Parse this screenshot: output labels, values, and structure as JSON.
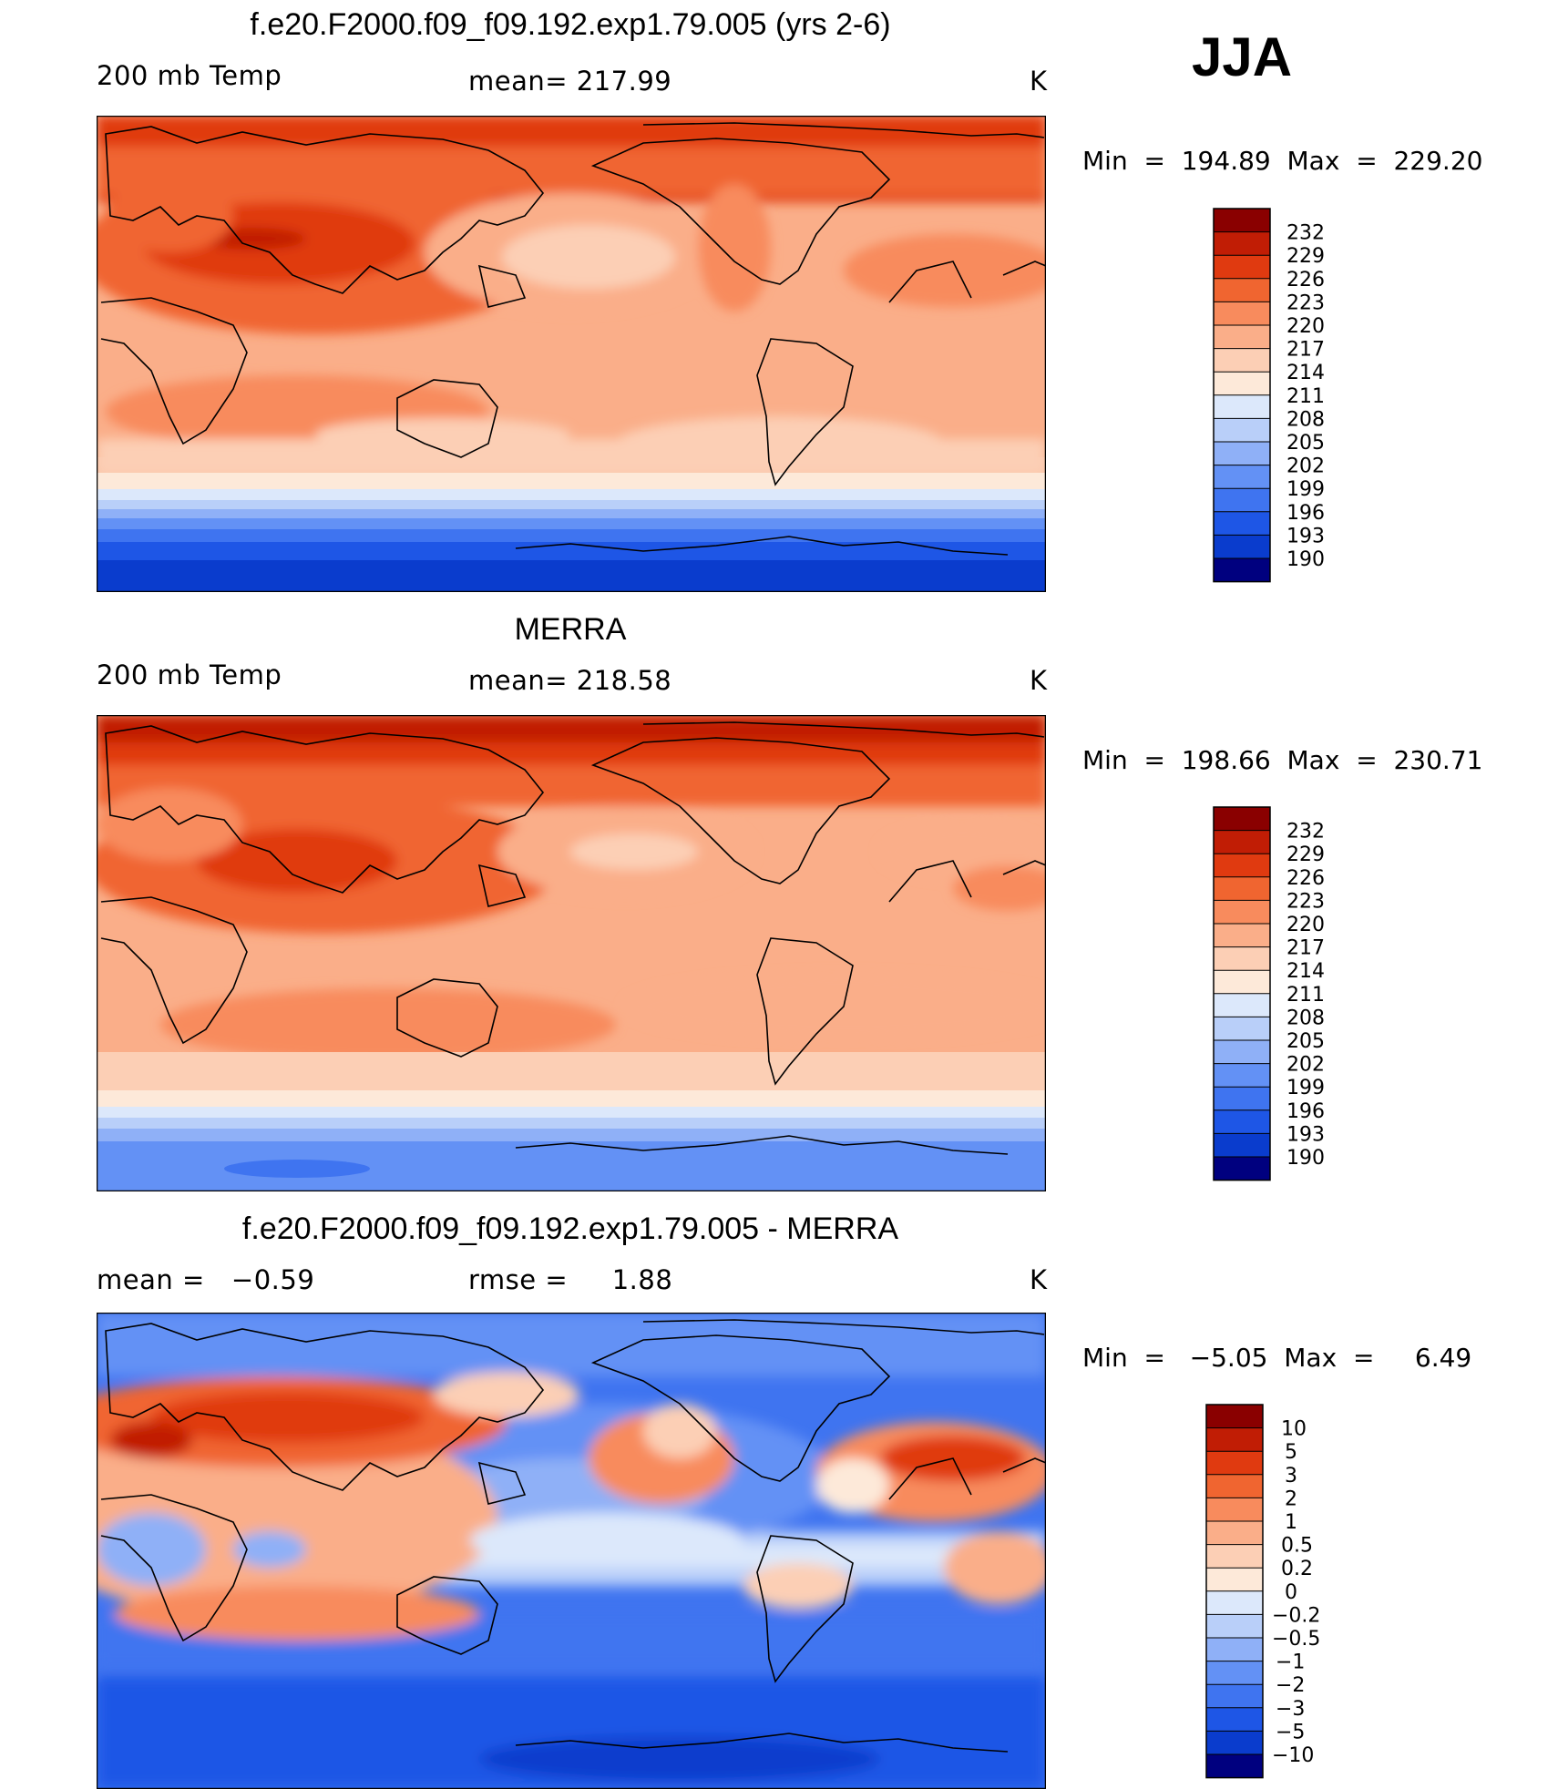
{
  "season": "JJA",
  "units": "K",
  "colors": {
    "temp_scale": [
      "#00007f",
      "#0020a5",
      "#0a3ccd",
      "#1e56e6",
      "#3f74f0",
      "#6391f5",
      "#8fb0f7",
      "#b9cff9",
      "#dce8fb",
      "#fde9d9",
      "#fccfb5",
      "#faae89",
      "#f88b5d",
      "#f06530",
      "#e03a10",
      "#c11d05",
      "#8a0000"
    ],
    "diff_scale": [
      "#00007f",
      "#0020a5",
      "#0a3ccd",
      "#1e56e6",
      "#3f74f0",
      "#6391f5",
      "#8fb0f7",
      "#b9cff9",
      "#dce8fb",
      "#fde9d9",
      "#fccfb5",
      "#faae89",
      "#f88b5d",
      "#f06530",
      "#e03a10",
      "#c11d05",
      "#8a0000"
    ]
  },
  "chart_data": [
    {
      "type": "heatmap",
      "title": "f.e20.F2000.f09_f09.192.exp1.79.005 (yrs 2-6)",
      "left_label": "200 mb Temp",
      "center_label": "mean= 217.99",
      "right_label": "K",
      "min_max_text": "Min  =  194.89  Max  =  229.20",
      "colorbar_levels": [
        "232",
        "229",
        "226",
        "223",
        "220",
        "217",
        "214",
        "211",
        "208",
        "205",
        "202",
        "199",
        "196",
        "193",
        "190"
      ],
      "mean": 217.99,
      "min": 194.89,
      "max": 229.2
    },
    {
      "type": "heatmap",
      "title": "MERRA",
      "left_label": "200 mb Temp",
      "center_label": "mean= 218.58",
      "right_label": "K",
      "min_max_text": "Min  =  198.66  Max  =  230.71",
      "colorbar_levels": [
        "232",
        "229",
        "226",
        "223",
        "220",
        "217",
        "214",
        "211",
        "208",
        "205",
        "202",
        "199",
        "196",
        "193",
        "190"
      ],
      "mean": 218.58,
      "min": 198.66,
      "max": 230.71
    },
    {
      "type": "heatmap",
      "title": "f.e20.F2000.f09_f09.192.exp1.79.005 - MERRA",
      "left_label": "mean =   −0.59",
      "center_label": "rmse =     1.88",
      "right_label": "K",
      "min_max_text": "Min  =   −5.05  Max  =     6.49",
      "colorbar_levels": [
        "10",
        "5",
        "3",
        "2",
        "1",
        "0.5",
        "0.2",
        "0",
        "−0.2",
        "−0.5",
        "−1",
        "−2",
        "−3",
        "−5",
        "−10"
      ],
      "mean": -0.59,
      "rmse": 1.88,
      "min": -5.05,
      "max": 6.49
    }
  ]
}
